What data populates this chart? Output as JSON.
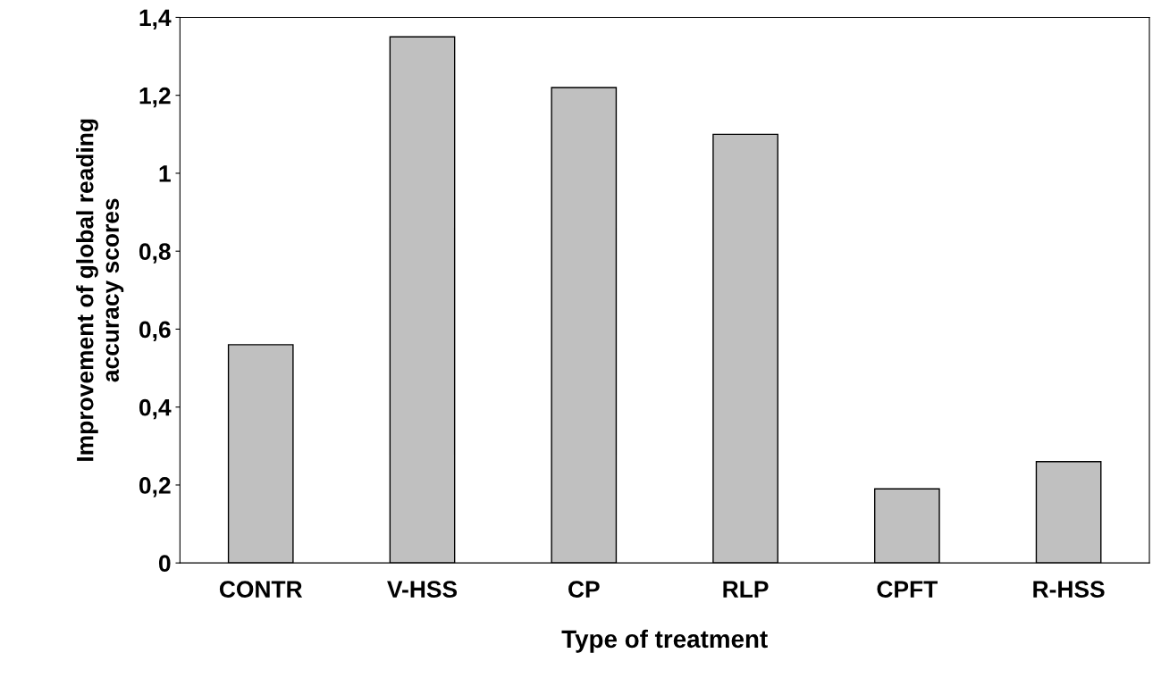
{
  "chart_data": {
    "type": "bar",
    "xlabel": "Type of treatment",
    "ylabel": "Improvement of global reading\naccuracy scores",
    "categories": [
      "CONTR",
      "V-HSS",
      "CP",
      "RLP",
      "CPFT",
      "R-HSS"
    ],
    "values": [
      0.56,
      1.35,
      1.22,
      1.1,
      0.19,
      0.26
    ],
    "color": "#c0c0c0",
    "ylim": [
      0,
      1.4
    ],
    "yticks": [
      0,
      {
        "value": 0.2,
        "label": "0,2"
      },
      {
        "value": 0.4,
        "label": "0,4"
      },
      {
        "value": 0.6,
        "label": "0,6"
      },
      {
        "value": 0.8,
        "label": "0,8"
      },
      1,
      {
        "value": 1.2,
        "label": "1,2"
      },
      {
        "value": 1.4,
        "label": "1,4"
      }
    ],
    "grid": false,
    "legend": false
  }
}
